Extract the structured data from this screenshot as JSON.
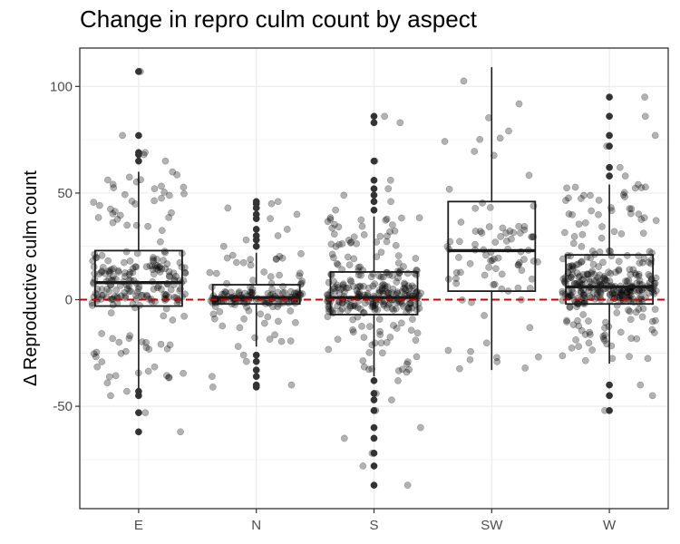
{
  "chart_data": {
    "type": "box",
    "title": "Change in repro culm count by aspect",
    "xlabel": "",
    "ylabel": "Δ Reproductive culm count",
    "categories": [
      "E",
      "N",
      "S",
      "SW",
      "W"
    ],
    "ylim": [
      -98,
      118
    ],
    "yticks": [
      -50,
      0,
      50,
      100
    ],
    "grid": true,
    "reference_line": {
      "y": 0,
      "color": "#cc0000",
      "style": "dashed"
    },
    "colors": {
      "points": "#000000",
      "reference": "#cc0000",
      "box": "#1a1a1a",
      "grid": "#ebebeb"
    },
    "boxes": [
      {
        "category": "E",
        "whisker_low": -45,
        "q1": -3,
        "median": 8,
        "q3": 23,
        "whisker_high": 60,
        "outliers": [
          -62,
          -53,
          -45,
          -43,
          65,
          68,
          69,
          77,
          107
        ]
      },
      {
        "category": "N",
        "whisker_low": -22,
        "q1": -2,
        "median": 1,
        "q3": 7,
        "whisker_high": 22,
        "outliers": [
          -41,
          -40,
          -36,
          -33,
          -29,
          -26,
          25,
          28,
          30,
          33,
          38,
          40,
          43,
          45,
          46
        ]
      },
      {
        "category": "S",
        "whisker_low": -36,
        "q1": -7,
        "median": 1,
        "q3": 13,
        "whisker_high": 39,
        "outliers": [
          -87,
          -78,
          -72,
          -65,
          -60,
          -52,
          -47,
          -44,
          -38,
          42,
          46,
          49,
          52,
          56,
          65,
          83,
          86
        ]
      },
      {
        "category": "SW",
        "whisker_low": -33,
        "q1": 4,
        "median": 23,
        "q3": 46,
        "whisker_high": 109,
        "outliers": []
      },
      {
        "category": "W",
        "whisker_low": -30,
        "q1": -2,
        "median": 6,
        "q3": 21,
        "whisker_high": 54,
        "outliers": [
          -52,
          -45,
          -40,
          58,
          62,
          72,
          77,
          86,
          95
        ]
      }
    ]
  }
}
